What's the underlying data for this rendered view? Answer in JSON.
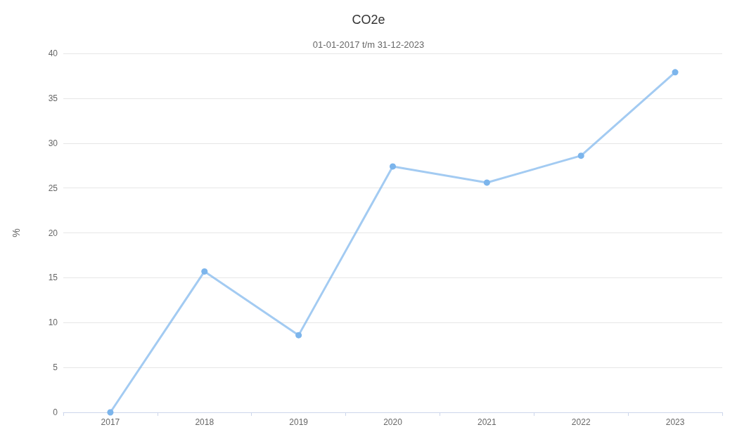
{
  "chart_data": {
    "type": "line",
    "title": "CO2e",
    "subtitle": "01-01-2017 t/m 31-12-2023",
    "ylabel": "%",
    "categories": [
      "2017",
      "2018",
      "2019",
      "2020",
      "2021",
      "2022",
      "2023"
    ],
    "series": [
      {
        "color": "#7cb5ec",
        "values": [
          0,
          15.7,
          8.6,
          27.4,
          25.6,
          28.6,
          37.9
        ]
      }
    ],
    "ylim": [
      0,
      40
    ],
    "yticks": [
      0,
      5,
      10,
      15,
      20,
      25,
      30,
      35,
      40
    ],
    "grid": "y",
    "marker": "circle",
    "line_style": "solid"
  }
}
